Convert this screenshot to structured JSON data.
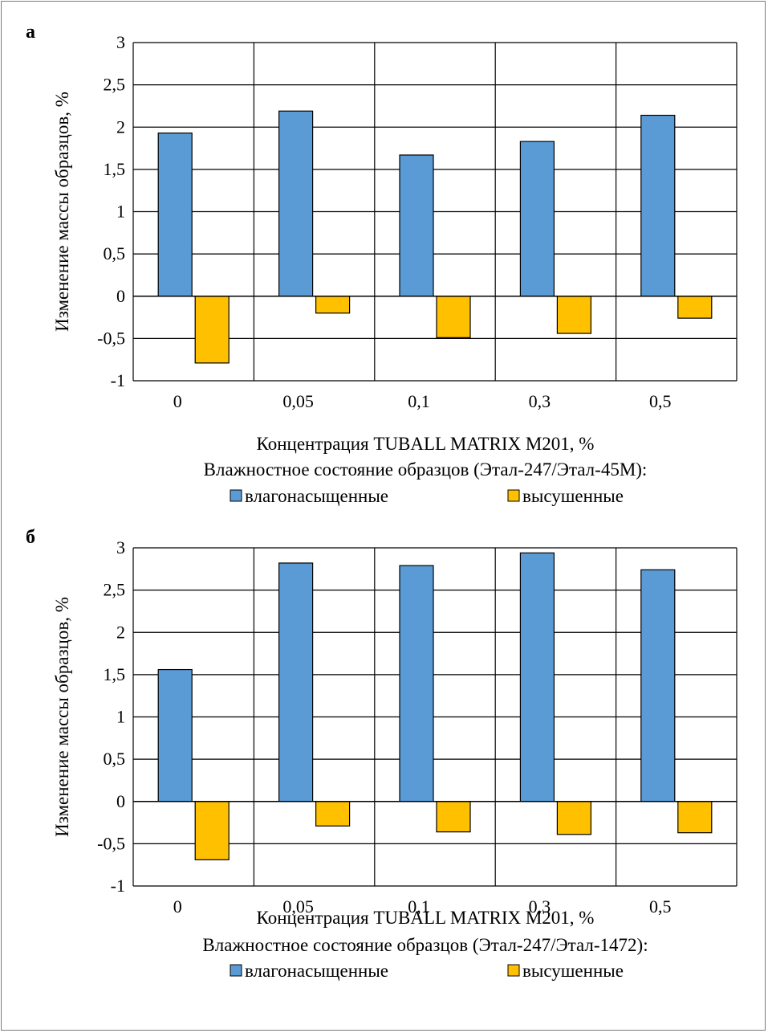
{
  "chart_data": [
    {
      "type": "bar",
      "panel_label": "а",
      "categories": [
        "0",
        "0,05",
        "0,1",
        "0,3",
        "0,5"
      ],
      "series": [
        {
          "name": "влагонасыщенные",
          "values": [
            1.93,
            2.19,
            1.67,
            1.83,
            2.14
          ],
          "color": "#5b9bd5"
        },
        {
          "name": "высушенные",
          "values": [
            -0.79,
            -0.2,
            -0.49,
            -0.44,
            -0.26
          ],
          "color": "#ffc000"
        }
      ],
      "xlabel": "Концентрация TUBALL MATRIX M201, %",
      "ylabel": "Изменение массы образцов, %",
      "ylim": [
        -1,
        3
      ],
      "yticks": [
        "-1",
        "-0,5",
        "0",
        "0,5",
        "1",
        "1,5",
        "2",
        "2,5",
        "3"
      ],
      "legend_title": "Влажностное состояние образцов (Этал-247/Этал-45М):",
      "legend_position": "bottom",
      "grid": true
    },
    {
      "type": "bar",
      "panel_label": "б",
      "categories": [
        "0",
        "0,05",
        "0,1",
        "0,3",
        "0,5"
      ],
      "series": [
        {
          "name": "влагонасыщенные",
          "values": [
            1.56,
            2.82,
            2.79,
            2.94,
            2.74
          ],
          "color": "#5b9bd5"
        },
        {
          "name": "высушенные",
          "values": [
            -0.69,
            -0.29,
            -0.36,
            -0.39,
            -0.37
          ],
          "color": "#ffc000"
        }
      ],
      "xlabel": "Концентрация TUBALL MATRIX M201, %",
      "ylabel": "Изменение массы образцов, %",
      "ylim": [
        -1,
        3
      ],
      "yticks": [
        "-1",
        "-0,5",
        "0",
        "0,5",
        "1",
        "1,5",
        "2",
        "2,5",
        "3"
      ],
      "legend_title": "Влажностное состояние образцов (Этал-247/Этал-1472):",
      "legend_position": "bottom",
      "grid": true
    }
  ]
}
